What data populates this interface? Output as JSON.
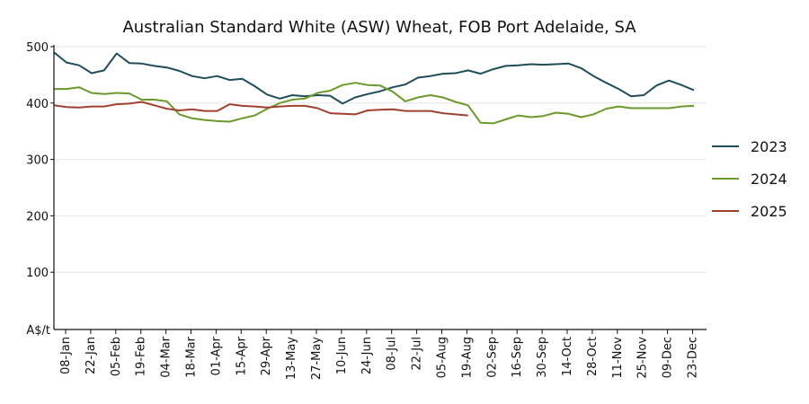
{
  "chart_data": {
    "type": "line",
    "title": "Australian Standard White (ASW) Wheat, FOB Port Adelaide, SA",
    "ylabel": "A$/t",
    "ylim": [
      0,
      500
    ],
    "yticks": [
      100,
      200,
      300,
      400,
      500
    ],
    "x_tick_labels": [
      "08-Jan",
      "22-Jan",
      "05-Feb",
      "19-Feb",
      "04-Mar",
      "18-Mar",
      "01-Apr",
      "15-Apr",
      "29-Apr",
      "13-May",
      "27-May",
      "10-Jun",
      "24-Jun",
      "08-Jul",
      "22-Jul",
      "05-Aug",
      "19-Aug",
      "02-Sep",
      "16-Sep",
      "30-Sep",
      "14-Oct",
      "28-Oct",
      "11-Nov",
      "25-Nov",
      "09-Dec",
      "23-Dec"
    ],
    "x_range_weeks": [
      0,
      52
    ],
    "grid": true,
    "legend_position": "right",
    "series": [
      {
        "name": "2023",
        "color": "#1f4e5a",
        "week_start": 0,
        "values": [
          490,
          472,
          467,
          453,
          458,
          488,
          471,
          470,
          466,
          463,
          457,
          448,
          444,
          448,
          441,
          443,
          430,
          415,
          408,
          414,
          412,
          414,
          413,
          399,
          410,
          416,
          421,
          428,
          433,
          445,
          448,
          452,
          453,
          458,
          452,
          460,
          466,
          467,
          469,
          468,
          469,
          470,
          462,
          448,
          436,
          425,
          412,
          414,
          431,
          440,
          432,
          423
        ]
      },
      {
        "name": "2024",
        "color": "#6b9a2a",
        "week_start": 0,
        "values": [
          425,
          425,
          428,
          418,
          416,
          418,
          417,
          406,
          406,
          403,
          380,
          373,
          370,
          368,
          367,
          373,
          378,
          390,
          400,
          406,
          408,
          418,
          422,
          432,
          436,
          432,
          431,
          420,
          403,
          410,
          414,
          410,
          402,
          396,
          365,
          364,
          371,
          378,
          375,
          377,
          383,
          381,
          375,
          380,
          390,
          394,
          391,
          391,
          391,
          391,
          394,
          395
        ]
      },
      {
        "name": "2025",
        "color": "#a0412d",
        "week_start": 0,
        "values": [
          396,
          393,
          392,
          394,
          394,
          398,
          399,
          402,
          396,
          390,
          387,
          389,
          386,
          386,
          398,
          395,
          394,
          392,
          394,
          395,
          395,
          391,
          382,
          381,
          380,
          387,
          388,
          389,
          386,
          386,
          386,
          382,
          380,
          378
        ]
      }
    ]
  }
}
